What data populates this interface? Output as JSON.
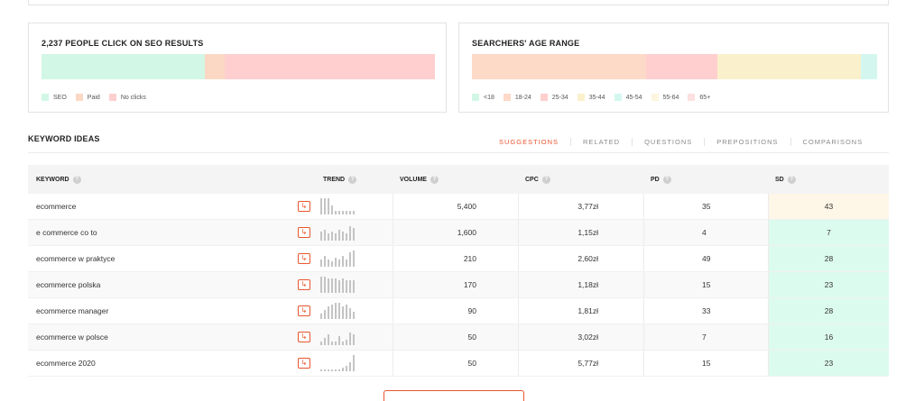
{
  "clicks_card": {
    "title": "2,237 PEOPLE CLICK ON SEO RESULTS",
    "segments": [
      {
        "name": "SEO",
        "fraction": 0.415,
        "color": "#d3f7e6"
      },
      {
        "name": "Paid",
        "fraction": 0.05,
        "color": "#fbd8c4"
      },
      {
        "name": "No clicks",
        "fraction": 0.535,
        "color": "#ffcfcf"
      }
    ],
    "legend": [
      "SEO",
      "Paid",
      "No clicks"
    ]
  },
  "age_card": {
    "title": "SEARCHERS' AGE RANGE",
    "segments": [
      {
        "name": "<18",
        "fraction": 0.0,
        "color": "#d3f7e6"
      },
      {
        "name": "18-24",
        "fraction": 0.43,
        "color": "#fdd9c7"
      },
      {
        "name": "25-34",
        "fraction": 0.175,
        "color": "#ffcfcf"
      },
      {
        "name": "35-44",
        "fraction": 0.355,
        "color": "#fbf0cc"
      },
      {
        "name": "45-54",
        "fraction": 0.04,
        "color": "#d3f7ef"
      },
      {
        "name": "55-64",
        "fraction": 0.0,
        "color": "#fdf5dd"
      },
      {
        "name": "65+",
        "fraction": 0.0,
        "color": "#fde0e0"
      }
    ],
    "legend": [
      "<18",
      "18-24",
      "25-34",
      "35-44",
      "45-54",
      "55-64",
      "65+"
    ]
  },
  "keyword_ideas": {
    "title": "KEYWORD IDEAS",
    "tabs": [
      "SUGGESTIONS",
      "RELATED",
      "QUESTIONS",
      "PREPOSITIONS",
      "COMPARISONS"
    ],
    "active_tab": "SUGGESTIONS",
    "columns": [
      "KEYWORD",
      "TREND",
      "VOLUME",
      "CPC",
      "PD",
      "SD"
    ],
    "rows": [
      {
        "keyword": "ecommerce",
        "volume": "5,400",
        "cpc": "3,77zł",
        "pd": "35",
        "sd": "43",
        "sd_color": "#fef6e7",
        "trend": [
          9,
          9,
          9,
          5,
          2,
          2,
          2,
          2,
          2,
          2
        ]
      },
      {
        "keyword": "e commerce co to",
        "volume": "1,600",
        "cpc": "1,15zł",
        "pd": "4",
        "sd": "7",
        "sd_color": "#dcfbef",
        "trend": [
          5,
          6,
          4,
          5,
          4,
          6,
          5,
          4,
          8,
          7
        ]
      },
      {
        "keyword": "ecommerce w praktyce",
        "volume": "210",
        "cpc": "2,60zł",
        "pd": "49",
        "sd": "28",
        "sd_color": "#dcfbef",
        "trend": [
          4,
          6,
          4,
          3,
          5,
          4,
          6,
          4,
          8,
          9
        ]
      },
      {
        "keyword": "ecommerce polska",
        "volume": "170",
        "cpc": "1,18zł",
        "pd": "15",
        "sd": "23",
        "sd_color": "#dcfbef",
        "trend": [
          9,
          9,
          8,
          8,
          8,
          7,
          8,
          7,
          7,
          7
        ]
      },
      {
        "keyword": "ecommerce manager",
        "volume": "90",
        "cpc": "1,81zł",
        "pd": "33",
        "sd": "28",
        "sd_color": "#dcfbef",
        "trend": [
          3,
          5,
          7,
          8,
          9,
          9,
          7,
          8,
          6,
          4
        ]
      },
      {
        "keyword": "ecommerce w polsce",
        "volume": "50",
        "cpc": "3,02zł",
        "pd": "7",
        "sd": "16",
        "sd_color": "#dcfbef",
        "trend": [
          2,
          4,
          6,
          2,
          2,
          5,
          2,
          3,
          7,
          6
        ]
      },
      {
        "keyword": "ecommerce 2020",
        "volume": "50",
        "cpc": "5,77zł",
        "pd": "15",
        "sd": "23",
        "sd_color": "#dcfbef",
        "trend": [
          1,
          1,
          1,
          1,
          1,
          1,
          2,
          3,
          5,
          9
        ]
      }
    ]
  },
  "icons": {
    "help": "question-circle-icon",
    "goto": "arrow-right-box-icon"
  },
  "accent_color": "#e8562e"
}
